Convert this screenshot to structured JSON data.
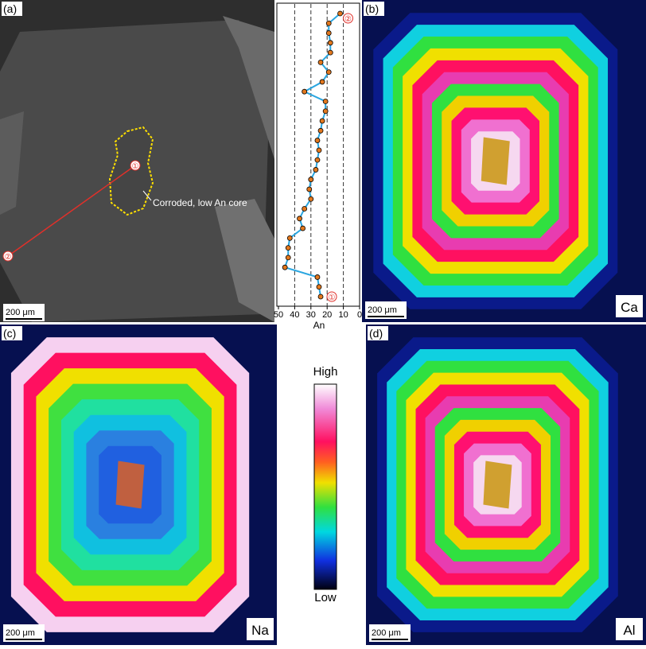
{
  "chart_data": {
    "type": "line",
    "xlabel": "An",
    "values": [
      12,
      19,
      19,
      18,
      18,
      24,
      19,
      23,
      34,
      21,
      21,
      23,
      24,
      26,
      25,
      26,
      27,
      30,
      31,
      30,
      34,
      37,
      35,
      43,
      44,
      44,
      46,
      26,
      25,
      24
    ],
    "xlim": [
      50,
      0
    ],
    "xticks": [
      50,
      40,
      30,
      20,
      10,
      0
    ],
    "grid": true,
    "color": "#2aa6e0",
    "marker_color": "#e2781e"
  },
  "figure": {
    "panels": [
      "(a)",
      "(b)",
      "(c)",
      "(d)"
    ],
    "core_note": "Corroded, low An core",
    "start_marker": "①",
    "end_marker": "②",
    "scale_bar": "200 μm",
    "elements": [
      "Ca",
      "Na",
      "Al"
    ],
    "colorbar": {
      "high": "High",
      "low": "Low"
    }
  }
}
